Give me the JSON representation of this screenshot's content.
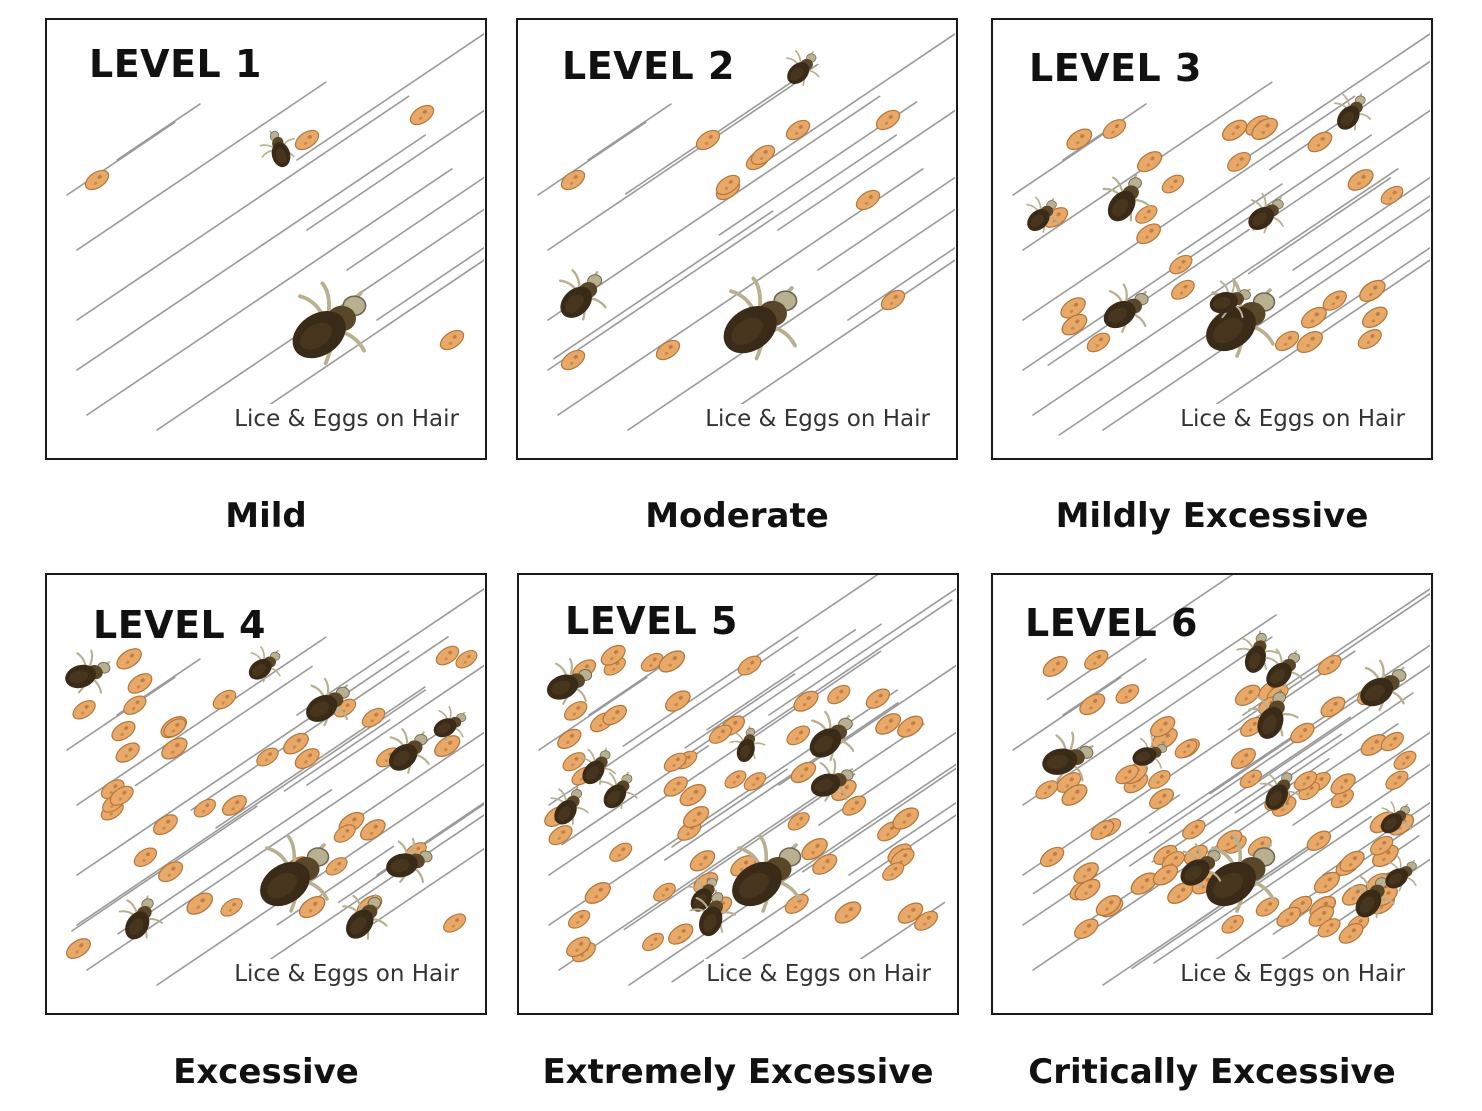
{
  "panels": [
    {
      "level": "LEVEL 1",
      "caption": "Lice & Eggs on Hair",
      "severity": "Mild",
      "lice": 2,
      "eggs": 4
    },
    {
      "level": "LEVEL 2",
      "caption": "Lice & Eggs on Hair",
      "severity": "Moderate",
      "lice": 3,
      "eggs": 12
    },
    {
      "level": "LEVEL 3",
      "caption": "Lice & Eggs on Hair",
      "severity": "Mildly Excessive",
      "lice": 7,
      "eggs": 26
    },
    {
      "level": "LEVEL 4",
      "caption": "Lice & Eggs on Hair",
      "severity": "Excessive",
      "lice": 9,
      "eggs": 40
    },
    {
      "level": "LEVEL 5",
      "caption": "Lice & Eggs on Hair",
      "severity": "Extremely Excessive",
      "lice": 10,
      "eggs": 58
    },
    {
      "level": "LEVEL 6",
      "caption": "Lice & Eggs on Hair",
      "severity": "Critically Excessive",
      "lice": 12,
      "eggs": 80
    }
  ],
  "colors": {
    "hair": "#9a9a9a",
    "egg": "#e8a868",
    "egg_dark": "#b5763c",
    "louse_body": "#3a2a18",
    "louse_leg": "#b8b090",
    "border": "#1a1a1a"
  }
}
